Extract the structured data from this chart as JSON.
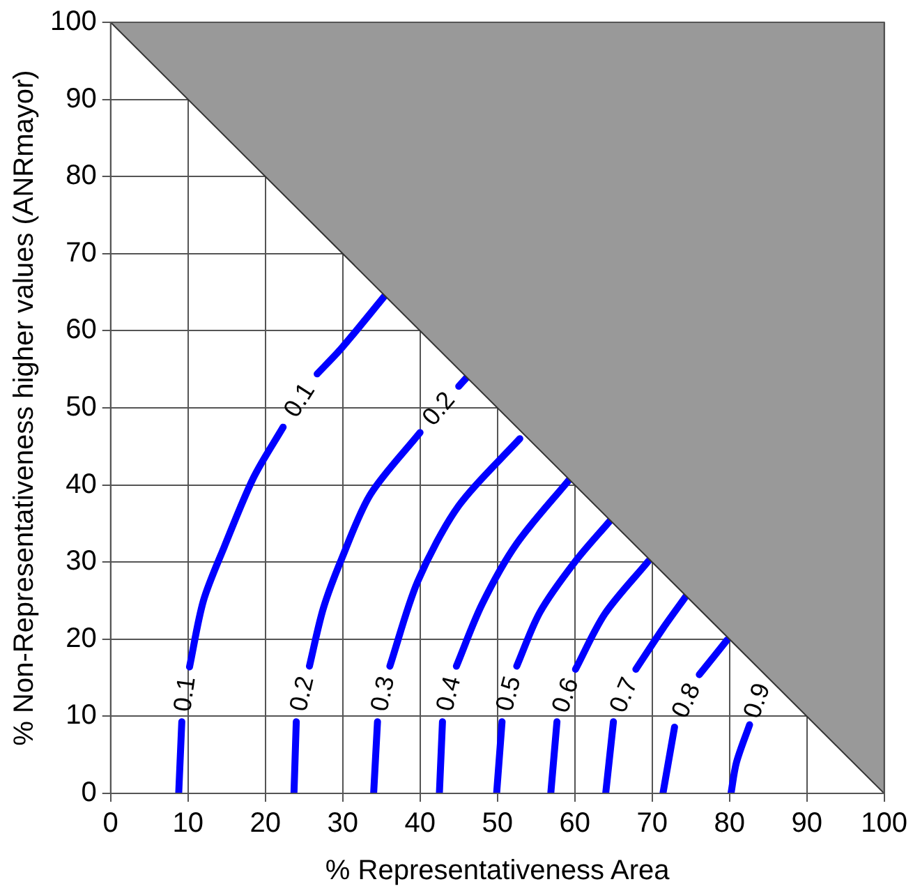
{
  "chart_data": {
    "type": "line",
    "xlabel": "% Representativeness Area",
    "ylabel": "% Non-Representativeness higher values (ANRmayor)",
    "xlim": [
      0,
      100
    ],
    "ylim": [
      0,
      100
    ],
    "xticks": [
      0,
      10,
      20,
      30,
      40,
      50,
      60,
      70,
      80,
      90,
      100
    ],
    "yticks": [
      0,
      10,
      20,
      30,
      40,
      50,
      60,
      70,
      80,
      90,
      100
    ],
    "grid": true,
    "marker": "none",
    "line_style": "solid",
    "legend": false,
    "series": [
      {
        "type": "area",
        "color": "#999999",
        "x": [
          0,
          100
        ],
        "values": [
          100,
          0
        ]
      },
      {
        "name": "0.1",
        "color": "#0000ff",
        "x": [
          8.8,
          9.2,
          null,
          10.2,
          12,
          14.7,
          18.5,
          22.3,
          null,
          26.7,
          29.9,
          35.5
        ],
        "values": [
          0,
          9.3,
          null,
          16.4,
          25,
          32,
          41,
          47.5,
          null,
          54.4,
          57.8,
          64.6
        ]
      },
      {
        "name": "0.2",
        "color": "#0000ff",
        "x": [
          23.7,
          24,
          null,
          25.7,
          27.5,
          29.9,
          33.6,
          40,
          null,
          45,
          46.1
        ],
        "values": [
          0,
          9.3,
          null,
          16.5,
          24,
          30.5,
          38.8,
          46.8,
          null,
          52.8,
          54
        ]
      },
      {
        "name": "0.3",
        "color": "#0000ff",
        "x": [
          34,
          34.5,
          null,
          36.1,
          39.7,
          45,
          52.9
        ],
        "values": [
          0,
          9.3,
          null,
          16.5,
          27.5,
          37.3,
          46
        ]
      },
      {
        "name": "0.4",
        "color": "#0000ff",
        "x": [
          42.5,
          42.9,
          null,
          44.7,
          48,
          52.5,
          59.3
        ],
        "values": [
          0,
          9.3,
          null,
          16.5,
          24.5,
          32.4,
          40.7
        ]
      },
      {
        "name": "0.5",
        "color": "#0000ff",
        "x": [
          49.9,
          50.6,
          null,
          52.5,
          55.5,
          60,
          64.6
        ],
        "values": [
          0,
          9.3,
          null,
          16.5,
          23.5,
          30,
          35.4
        ]
      },
      {
        "name": "0.6",
        "color": "#0000ff",
        "x": [
          56.9,
          57.7,
          null,
          60.1,
          63.9,
          69.5
        ],
        "values": [
          0,
          9.3,
          null,
          16.1,
          23.3,
          30.1
        ]
      },
      {
        "name": "0.7",
        "color": "#0000ff",
        "x": [
          64,
          65,
          null,
          67.9,
          71.4,
          74.4
        ],
        "values": [
          0,
          9.3,
          null,
          16.1,
          21.4,
          25.6
        ]
      },
      {
        "name": "0.8",
        "color": "#0000ff",
        "x": [
          71.4,
          72.9,
          null,
          76.1,
          79.7
        ],
        "values": [
          0,
          8.6,
          null,
          15.4,
          19.9
        ]
      },
      {
        "name": "0.9",
        "color": "#0000ff",
        "x": [
          80.2,
          80.9,
          82.6
        ],
        "values": [
          0,
          4,
          8.9
        ]
      }
    ]
  }
}
